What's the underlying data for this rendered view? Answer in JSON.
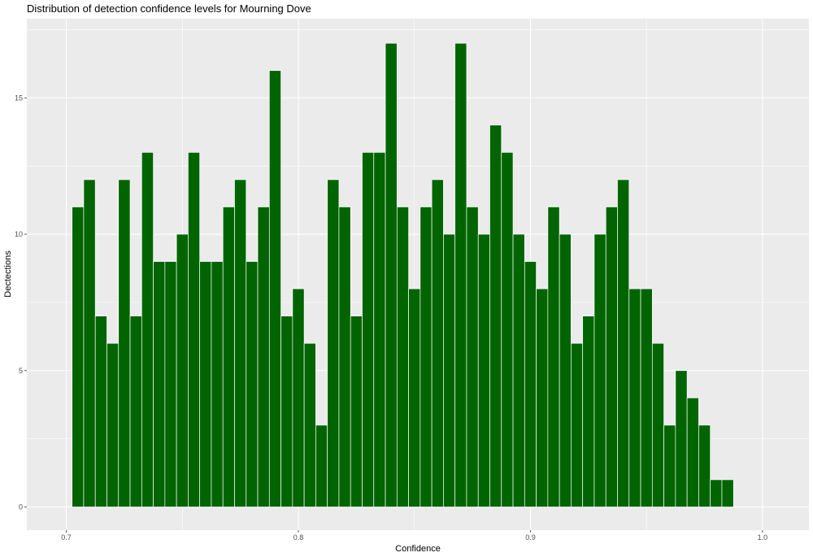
{
  "chart_data": {
    "type": "bar",
    "title": "Distribution of detection confidence levels for Mourning Dove",
    "xlabel": "Confidence",
    "ylabel": "Dectections",
    "xlim": [
      0.683,
      1.02
    ],
    "ylim": [
      -0.85,
      17.9
    ],
    "x_ticks": [
      0.7,
      0.8,
      0.9,
      1.0
    ],
    "x_tick_labels": [
      "0.7",
      "0.8",
      "0.9",
      "1.0"
    ],
    "y_ticks": [
      0,
      5,
      10,
      15
    ],
    "y_tick_labels": [
      "0",
      "5",
      "10",
      "15"
    ],
    "grid": true,
    "bin_start": 0.7025,
    "bin_width": 0.005,
    "bar_color": "#006400",
    "panel_color": "#ebebeb",
    "values": [
      11,
      12,
      7,
      6,
      12,
      7,
      13,
      9,
      9,
      10,
      13,
      9,
      9,
      11,
      12,
      9,
      11,
      16,
      7,
      8,
      6,
      3,
      12,
      11,
      7,
      13,
      13,
      17,
      11,
      8,
      11,
      12,
      10,
      17,
      11,
      10,
      14,
      13,
      10,
      9,
      8,
      11,
      10,
      6,
      7,
      10,
      11,
      12,
      8,
      8,
      6,
      3,
      5,
      4,
      3,
      1,
      1
    ]
  }
}
